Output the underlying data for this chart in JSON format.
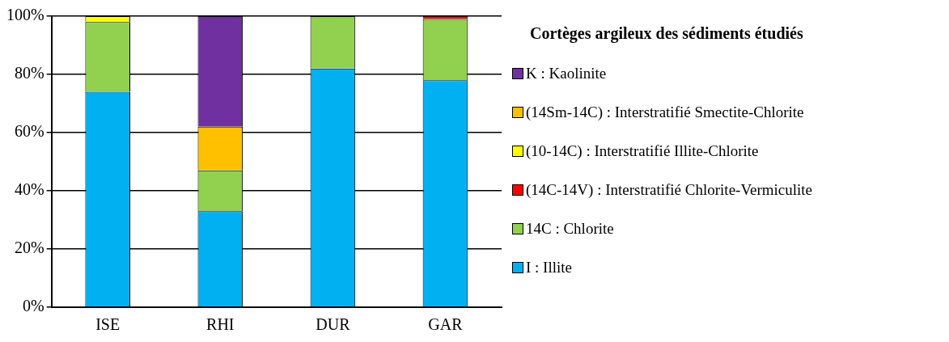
{
  "chart_data": {
    "type": "bar",
    "stacked": true,
    "legend_title": "Cortèges argileux des sédiments étudiés",
    "categories": [
      "ISE",
      "RHI",
      "DUR",
      "GAR"
    ],
    "series": [
      {
        "name": "I : Illite",
        "color": "#00b0f0",
        "values": [
          74,
          33,
          82,
          78
        ]
      },
      {
        "name": "14C : Chlorite",
        "color": "#92d050",
        "values": [
          24,
          14,
          18,
          21
        ]
      },
      {
        "name": "(14C-14V) : Interstratifié Chlorite-Vermiculite",
        "color": "#ff0000",
        "values": [
          0,
          0,
          0,
          1
        ]
      },
      {
        "name": "(10-14C) : Interstratifié Illite-Chlorite",
        "color": "#ffff00",
        "values": [
          2,
          0,
          0,
          0
        ]
      },
      {
        "name": "(14Sm-14C) : Interstratifié Smectite-Chlorite",
        "color": "#ffc000",
        "values": [
          0,
          15,
          0,
          0
        ]
      },
      {
        "name": "K : Kaolinite",
        "color": "#7030a0",
        "values": [
          0,
          38,
          0,
          0
        ]
      }
    ],
    "ylim": [
      0,
      100
    ],
    "yticks": [
      {
        "value": 0,
        "label": "0%"
      },
      {
        "value": 20,
        "label": "20%"
      },
      {
        "value": 40,
        "label": "40%"
      },
      {
        "value": 60,
        "label": "60%"
      },
      {
        "value": 80,
        "label": "80%"
      },
      {
        "value": 100,
        "label": "100%"
      }
    ],
    "grid": "y",
    "legend": "right"
  }
}
